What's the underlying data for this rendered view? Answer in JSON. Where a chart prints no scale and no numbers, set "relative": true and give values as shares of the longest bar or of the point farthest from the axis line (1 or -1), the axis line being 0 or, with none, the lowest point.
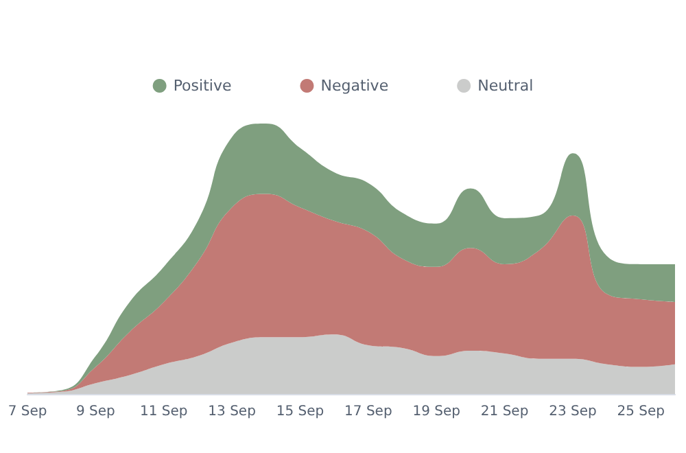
{
  "chart_data": {
    "type": "area",
    "stacked": true,
    "relative": true,
    "legend": "top",
    "grid": false,
    "marker": "none",
    "categories": [
      "7 Sep",
      null,
      "9 Sep",
      null,
      "11 Sep",
      null,
      "13 Sep",
      null,
      "15 Sep",
      null,
      "17 Sep",
      null,
      "19 Sep",
      null,
      "21 Sep",
      null,
      "23 Sep",
      null,
      "25 Sep",
      null
    ],
    "series": [
      {
        "name": "Neutral",
        "color": "#cbcccb",
        "values": [
          0.003,
          0.008,
          0.04,
          0.07,
          0.11,
          0.14,
          0.19,
          0.21,
          0.21,
          0.22,
          0.18,
          0.17,
          0.14,
          0.16,
          0.15,
          0.13,
          0.13,
          0.11,
          0.1,
          0.11
        ]
      },
      {
        "name": "Negative",
        "color": "#c27a75",
        "values": [
          0.002,
          0.003,
          0.06,
          0.16,
          0.23,
          0.35,
          0.5,
          0.53,
          0.48,
          0.42,
          0.42,
          0.33,
          0.33,
          0.38,
          0.33,
          0.4,
          0.53,
          0.26,
          0.25,
          0.23
        ]
      },
      {
        "name": "Positive",
        "color": "#7f9f7f",
        "values": [
          0,
          0.003,
          0.04,
          0.11,
          0.13,
          0.15,
          0.26,
          0.26,
          0.22,
          0.18,
          0.18,
          0.17,
          0.16,
          0.22,
          0.17,
          0.13,
          0.23,
          0.14,
          0.13,
          0.14
        ]
      }
    ]
  }
}
